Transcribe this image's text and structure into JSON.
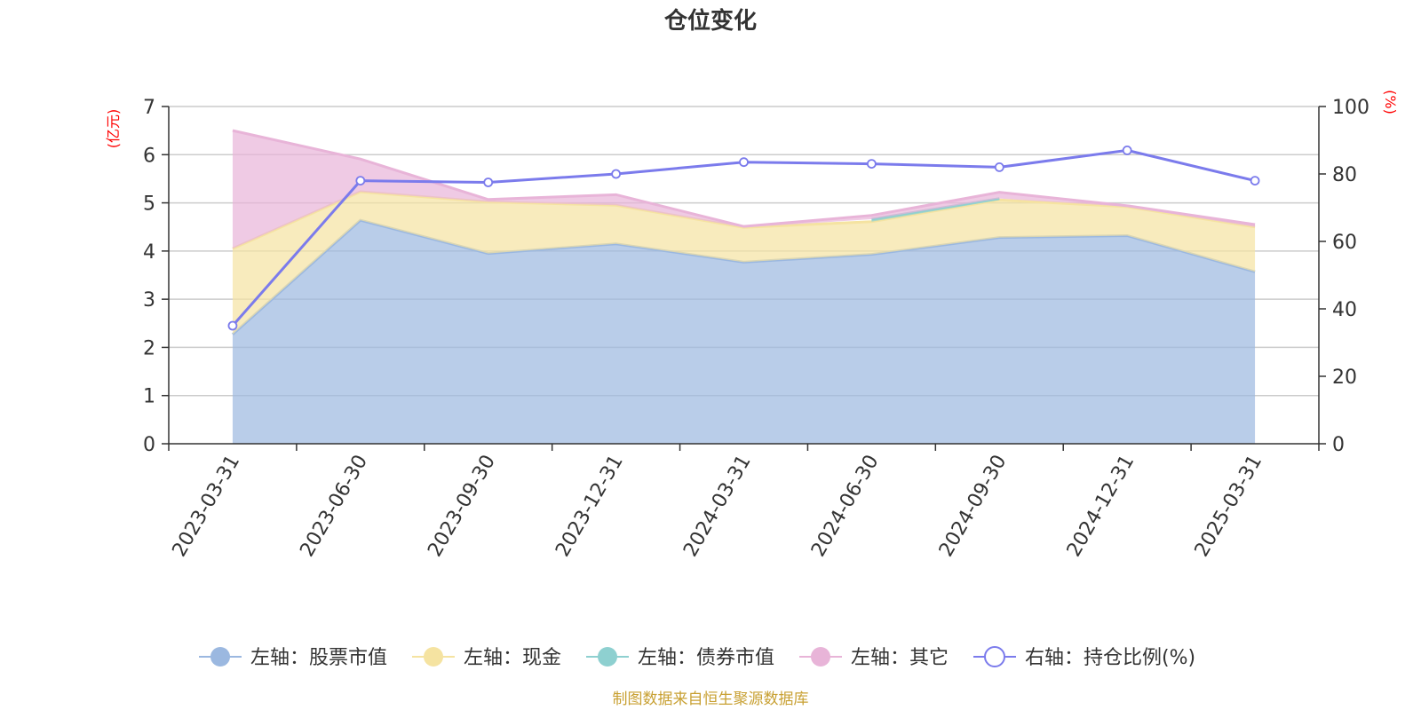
{
  "chart_data": {
    "type": "area",
    "title": "仓位变化",
    "categories": [
      "2023-03-31",
      "2023-06-30",
      "2023-09-30",
      "2023-12-31",
      "2024-03-31",
      "2024-06-30",
      "2024-09-30",
      "2024-12-31",
      "2025-03-31"
    ],
    "left_axis": {
      "unit": "(亿元)",
      "ylim": [
        0,
        7
      ],
      "ticks": [
        0,
        1,
        2,
        3,
        4,
        5,
        6,
        7
      ]
    },
    "right_axis": {
      "unit": "(%)",
      "ylim": [
        0,
        100
      ],
      "ticks": [
        0,
        20,
        40,
        60,
        80,
        100
      ]
    },
    "series": [
      {
        "name": "左轴：股票市值",
        "axis": "left",
        "kind": "stacked-area",
        "color": "#9bb8e0",
        "values": [
          2.27,
          4.64,
          3.95,
          4.15,
          3.77,
          3.93,
          4.28,
          4.32,
          3.57
        ]
      },
      {
        "name": "左轴：现金",
        "axis": "left",
        "kind": "stacked-area",
        "color": "#f5e3a1",
        "values": [
          1.78,
          0.59,
          1.07,
          0.8,
          0.72,
          0.68,
          0.78,
          0.6,
          0.93
        ]
      },
      {
        "name": "左轴：债券市值",
        "axis": "left",
        "kind": "stacked-area",
        "color": "#8ed0d0",
        "values": [
          null,
          null,
          null,
          null,
          null,
          0.05,
          0.03,
          null,
          null
        ]
      },
      {
        "name": "左轴：其它",
        "axis": "left",
        "kind": "stacked-area",
        "color": "#e8b4d8",
        "values": [
          2.45,
          0.68,
          0.05,
          0.22,
          0.02,
          0.08,
          0.13,
          0.02,
          0.05
        ]
      },
      {
        "name": "右轴：持仓比例(%)",
        "axis": "right",
        "kind": "line",
        "color": "#7b7bec",
        "values": [
          35,
          78,
          77.5,
          80,
          83.5,
          83,
          82,
          87,
          78
        ]
      }
    ],
    "source": "制图数据来自恒生聚源数据库"
  }
}
